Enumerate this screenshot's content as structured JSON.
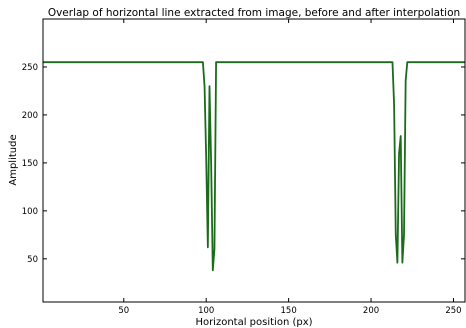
{
  "chart_data": {
    "type": "line",
    "title": "Overlap of horizontal line extracted from image, before and after interpolation",
    "xlabel": "Horizontal position (px)",
    "ylabel": "Amplitude",
    "xlim": [
      1,
      257
    ],
    "ylim": [
      5,
      300
    ],
    "xticks": [
      50,
      100,
      150,
      200,
      250
    ],
    "yticks": [
      50,
      100,
      150,
      200,
      250
    ],
    "grid": false,
    "legend": "none",
    "series": [
      {
        "color": "#1a6b1a",
        "x": [
          1,
          98,
          99,
          100,
          101,
          102,
          103,
          104,
          105,
          106,
          107,
          213,
          214,
          215,
          216,
          217,
          218,
          219,
          220,
          221,
          222,
          257
        ],
        "y": [
          255,
          255,
          230,
          155,
          62,
          230,
          150,
          38,
          60,
          255,
          255,
          255,
          210,
          75,
          46,
          160,
          178,
          46,
          75,
          236,
          255,
          255
        ]
      }
    ]
  }
}
